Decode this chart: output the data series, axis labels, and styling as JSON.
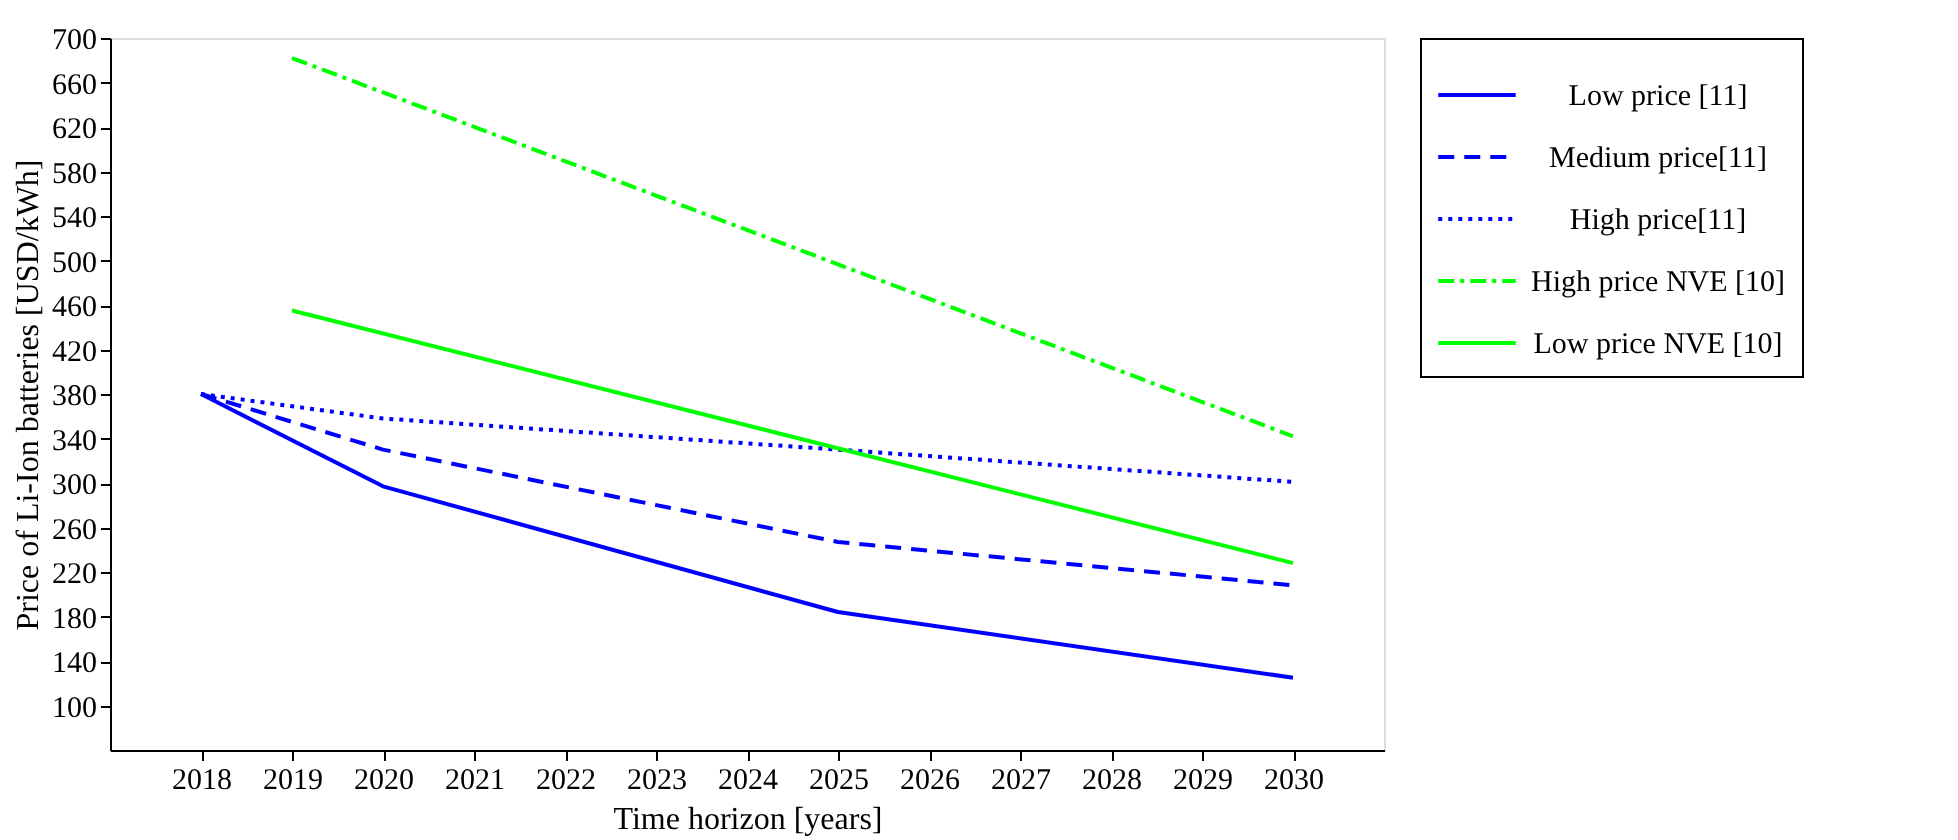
{
  "chart_data": {
    "type": "line",
    "xlabel": "Time horizon [years]",
    "ylabel": "Price of Li-Ion batteries [USD/kWh]",
    "xlim": [
      2017,
      2031
    ],
    "xticks": [
      2018,
      2019,
      2020,
      2021,
      2022,
      2023,
      2024,
      2025,
      2026,
      2027,
      2028,
      2029,
      2030
    ],
    "ylim": [
      60,
      700
    ],
    "yticks": [
      100,
      140,
      180,
      220,
      260,
      300,
      340,
      380,
      420,
      460,
      500,
      540,
      580,
      620,
      660,
      700
    ],
    "grid": false,
    "legend": "right",
    "marker": "none",
    "series": [
      {
        "name": "Low price [11]",
        "color": "#0000ff",
        "line_style": "solid",
        "x": [
          2018,
          2020,
          2025,
          2030
        ],
        "values": [
          380,
          297,
          184,
          125
        ]
      },
      {
        "name": "Medium price[11]",
        "color": "#0000ff",
        "line_style": "dashed",
        "x": [
          2018,
          2020,
          2025,
          2030
        ],
        "values": [
          380,
          330,
          247,
          208
        ]
      },
      {
        "name": "High price[11]",
        "color": "#0000ff",
        "line_style": "dotted",
        "x": [
          2018,
          2020,
          2025,
          2030
        ],
        "values": [
          380,
          358,
          330,
          301
        ]
      },
      {
        "name": "High price NVE [10]",
        "color": "#00ff00",
        "line_style": "dashdot",
        "x": [
          2019,
          2030
        ],
        "values": [
          682,
          342
        ]
      },
      {
        "name": "Low price NVE [10]",
        "color": "#00ff00",
        "line_style": "solid",
        "x": [
          2019,
          2030
        ],
        "values": [
          455,
          228
        ]
      }
    ]
  }
}
